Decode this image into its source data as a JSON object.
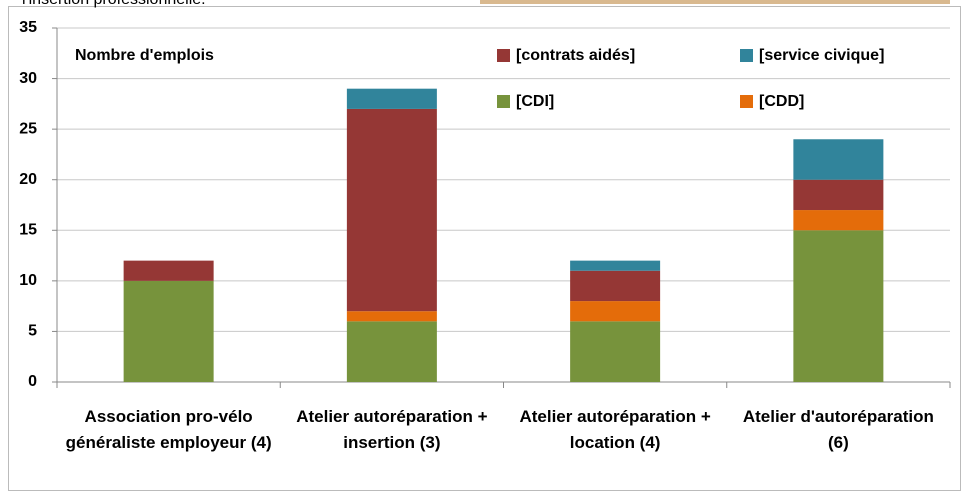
{
  "chart_data": {
    "type": "stacked_bar",
    "subtitle": "l'insertion professionnelle.",
    "annotation": "Nombre d'emplois",
    "categories": [
      "Association pro-vélo généraliste employeur (4)",
      "Atelier autoréparation + insertion (3)",
      "Atelier autoréparation + location (4)",
      "Atelier d'autoréparation (6)"
    ],
    "series": [
      {
        "name": "[CDI]",
        "color": "#77933c",
        "values": [
          10,
          6,
          6,
          15
        ]
      },
      {
        "name": "[CDD]",
        "color": "#e46c0a",
        "values": [
          0,
          1,
          2,
          2
        ]
      },
      {
        "name": "[contrats aidés]",
        "color": "#953735",
        "values": [
          2,
          20,
          3,
          3
        ]
      },
      {
        "name": "[service civique]",
        "color": "#31849b",
        "values": [
          0,
          2,
          1,
          4
        ]
      }
    ],
    "ylim": [
      0,
      35
    ],
    "yticks": [
      0,
      5,
      10,
      15,
      20,
      25,
      30,
      35
    ],
    "grid": true
  }
}
